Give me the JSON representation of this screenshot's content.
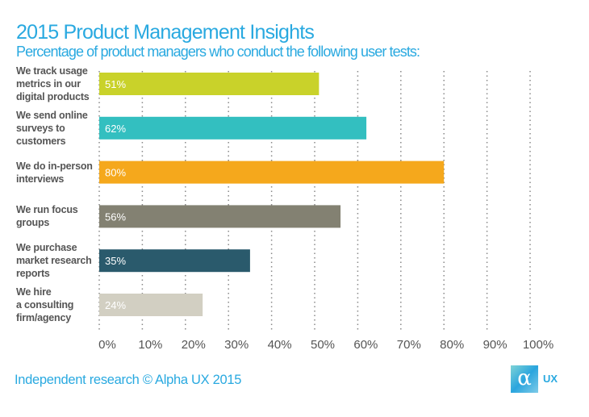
{
  "chart_data": {
    "type": "bar",
    "orientation": "horizontal",
    "title": "2015 Product Management Insights",
    "subtitle": "Percentage of product managers who conduct the following user tests:",
    "categories": [
      [
        "We track usage",
        "metrics in our",
        "digital products"
      ],
      [
        "We send online",
        "surveys to",
        "customers"
      ],
      [
        "We do in-person",
        "interviews"
      ],
      [
        "We run focus",
        "groups"
      ],
      [
        "We purchase",
        "market research",
        "reports"
      ],
      [
        "We hire",
        "a consulting",
        "firm/agency"
      ]
    ],
    "values": [
      51,
      62,
      80,
      56,
      35,
      24
    ],
    "data_labels": [
      "51%",
      "62%",
      "80%",
      "56%",
      "35%",
      "24%"
    ],
    "colors": [
      "#c9d22a",
      "#33bfc0",
      "#f5a81c",
      "#838172",
      "#2a5a6c",
      "#d2cfc2"
    ],
    "xlim": [
      0,
      100
    ],
    "xticks": [
      "0%",
      "10%",
      "20%",
      "30%",
      "40%",
      "50%",
      "60%",
      "70%",
      "80%",
      "90%",
      "100%"
    ],
    "grid": "vertical dotted",
    "legend": "none"
  },
  "footer": "Independent research © Alpha UX 2015",
  "logo": {
    "symbol": "α",
    "text": "UX"
  }
}
